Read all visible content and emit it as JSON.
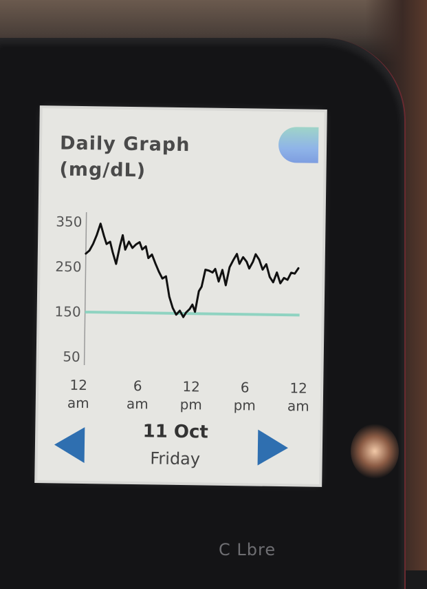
{
  "screen": {
    "title_line1": "Daily Graph",
    "title_line2": "(mg/dL)",
    "badge": "",
    "date": "11 Oct",
    "day": "Friday"
  },
  "device": {
    "brand": "C Lbre"
  },
  "colors": {
    "screen_bg": "#e6e6e2",
    "line": "#111111",
    "target": "#8fd3c1",
    "arrow": "#2f6fb0"
  },
  "icons": {
    "prev": "left-triangle-arrow-icon",
    "next": "right-triangle-arrow-icon"
  },
  "chart_data": {
    "type": "line",
    "title": "Daily Graph (mg/dL)",
    "xlabel": "",
    "ylabel": "",
    "x_ticks": [
      {
        "hour": 0,
        "line1": "12",
        "line2": "am"
      },
      {
        "hour": 6,
        "line1": "6",
        "line2": "am"
      },
      {
        "hour": 12,
        "line1": "12",
        "line2": "pm"
      },
      {
        "hour": 18,
        "line1": "6",
        "line2": "pm"
      },
      {
        "hour": 24,
        "line1": "12",
        "line2": "am"
      }
    ],
    "y_ticks": [
      50,
      150,
      250,
      350
    ],
    "xlim": [
      0,
      24
    ],
    "ylim": [
      30,
      370
    ],
    "target_line": 148,
    "grid": false,
    "series": [
      {
        "x": [
          0,
          0.4,
          0.8,
          1.2,
          1.6,
          2.0,
          2.3,
          2.7,
          3.0,
          3.4,
          3.8,
          4.1,
          4.4,
          4.8,
          5.2,
          5.6,
          6.0,
          6.3,
          6.7,
          7.0,
          7.4,
          7.8,
          8.2,
          8.6,
          9.0,
          9.4,
          9.8,
          10.2,
          10.6,
          11.0,
          11.3,
          11.7,
          12.0,
          12.3,
          12.7,
          13.0,
          13.4,
          13.8,
          14.2,
          14.5,
          14.9,
          15.3,
          15.7,
          16.1,
          16.5,
          16.9,
          17.2,
          17.6,
          18.0,
          18.3,
          18.7,
          19.0,
          19.4,
          19.8,
          20.2,
          20.6,
          21.0,
          21.4,
          21.8,
          22.2,
          22.6,
          23.0,
          23.4,
          23.8
        ],
        "y": [
          278,
          285,
          300,
          320,
          345,
          318,
          300,
          305,
          282,
          256,
          296,
          320,
          288,
          306,
          292,
          300,
          305,
          289,
          296,
          270,
          278,
          258,
          240,
          225,
          230,
          185,
          160,
          145,
          154,
          140,
          150,
          158,
          168,
          152,
          198,
          208,
          246,
          244,
          240,
          248,
          220,
          246,
          212,
          252,
          268,
          282,
          260,
          275,
          265,
          250,
          265,
          282,
          270,
          248,
          260,
          232,
          220,
          242,
          218,
          230,
          226,
          242,
          240,
          252
        ]
      }
    ]
  }
}
